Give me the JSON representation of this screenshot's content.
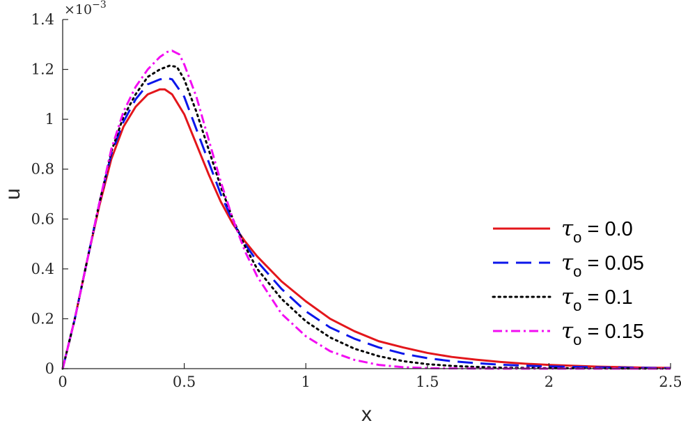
{
  "chart_data": {
    "type": "line",
    "title": "",
    "xlabel": "x",
    "ylabel": "u",
    "xlim": [
      0,
      2.5
    ],
    "ylim": [
      0,
      1.4
    ],
    "y_exponent_label": "×10",
    "y_exponent_power": "−3",
    "xticks": [
      0,
      0.5,
      1,
      1.5,
      2,
      2.5
    ],
    "xtick_labels": [
      "0",
      "0.5",
      "1",
      "1.5",
      "2",
      "2.5"
    ],
    "yticks": [
      0,
      0.2,
      0.4,
      0.6,
      0.8,
      1.0,
      1.2,
      1.4
    ],
    "ytick_labels": [
      "0",
      "0.2",
      "0.4",
      "0.6",
      "0.8",
      "1",
      "1.2",
      "1.4"
    ],
    "grid": false,
    "legend_position": "right",
    "series": [
      {
        "name": "τo = 0.0",
        "legend_symbol": "τ",
        "legend_subscript": "o",
        "legend_value": " = 0.0",
        "color": "#e3161b",
        "style": "solid",
        "x": [
          0,
          0.05,
          0.1,
          0.15,
          0.2,
          0.25,
          0.3,
          0.35,
          0.4,
          0.42,
          0.45,
          0.5,
          0.55,
          0.6,
          0.65,
          0.7,
          0.75,
          0.8,
          0.9,
          1.0,
          1.1,
          1.2,
          1.3,
          1.4,
          1.5,
          1.6,
          1.7,
          1.8,
          1.9,
          2.0,
          2.2,
          2.4,
          2.5
        ],
        "y": [
          0,
          0.2,
          0.43,
          0.65,
          0.84,
          0.97,
          1.05,
          1.1,
          1.12,
          1.12,
          1.1,
          1.02,
          0.9,
          0.78,
          0.67,
          0.58,
          0.51,
          0.45,
          0.35,
          0.27,
          0.2,
          0.15,
          0.11,
          0.085,
          0.063,
          0.047,
          0.036,
          0.027,
          0.02,
          0.015,
          0.008,
          0.004,
          0.003
        ]
      },
      {
        "name": "τo = 0.05",
        "legend_symbol": "τ",
        "legend_subscript": "o",
        "legend_value": " = 0.05",
        "color": "#0b16ea",
        "style": "dashed",
        "x": [
          0,
          0.05,
          0.1,
          0.15,
          0.2,
          0.25,
          0.3,
          0.35,
          0.4,
          0.43,
          0.45,
          0.5,
          0.55,
          0.6,
          0.65,
          0.7,
          0.75,
          0.8,
          0.9,
          1.0,
          1.1,
          1.2,
          1.3,
          1.4,
          1.5,
          1.6,
          1.7,
          1.8,
          1.9,
          2.0,
          2.2,
          2.4,
          2.5
        ],
        "y": [
          0,
          0.2,
          0.43,
          0.66,
          0.86,
          0.99,
          1.08,
          1.14,
          1.16,
          1.165,
          1.16,
          1.09,
          0.96,
          0.83,
          0.7,
          0.59,
          0.5,
          0.43,
          0.32,
          0.23,
          0.165,
          0.12,
          0.085,
          0.06,
          0.042,
          0.03,
          0.022,
          0.016,
          0.012,
          0.009,
          0.005,
          0.003,
          0.002
        ]
      },
      {
        "name": "τo = 0.1",
        "legend_symbol": "τ",
        "legend_subscript": "o",
        "legend_value": " = 0.1",
        "color": "#000000",
        "style": "dotted",
        "x": [
          0,
          0.05,
          0.1,
          0.15,
          0.2,
          0.25,
          0.3,
          0.35,
          0.4,
          0.44,
          0.47,
          0.5,
          0.55,
          0.6,
          0.65,
          0.7,
          0.75,
          0.8,
          0.9,
          1.0,
          1.1,
          1.2,
          1.3,
          1.4,
          1.5,
          1.6,
          1.7,
          1.8,
          2.0,
          2.2,
          2.5
        ],
        "y": [
          0,
          0.2,
          0.43,
          0.66,
          0.87,
          1.01,
          1.1,
          1.17,
          1.2,
          1.215,
          1.21,
          1.16,
          1.03,
          0.88,
          0.73,
          0.6,
          0.49,
          0.4,
          0.28,
          0.19,
          0.125,
          0.08,
          0.05,
          0.03,
          0.018,
          0.011,
          0.007,
          0.004,
          0.002,
          0.001,
          0.0
        ]
      },
      {
        "name": "τo = 0.15",
        "legend_symbol": "τ",
        "legend_subscript": "o",
        "legend_value": " = 0.15",
        "color": "#f20df2",
        "style": "dashdot",
        "x": [
          0,
          0.05,
          0.1,
          0.15,
          0.2,
          0.25,
          0.3,
          0.35,
          0.4,
          0.43,
          0.45,
          0.48,
          0.5,
          0.55,
          0.6,
          0.65,
          0.7,
          0.75,
          0.8,
          0.9,
          1.0,
          1.1,
          1.2,
          1.3,
          1.4,
          1.5,
          1.6,
          1.8,
          2.0,
          2.5
        ],
        "y": [
          0,
          0.2,
          0.43,
          0.66,
          0.88,
          1.03,
          1.13,
          1.2,
          1.25,
          1.27,
          1.275,
          1.26,
          1.22,
          1.09,
          0.92,
          0.75,
          0.6,
          0.47,
          0.37,
          0.22,
          0.13,
          0.07,
          0.035,
          0.015,
          0.006,
          0.002,
          0.001,
          0.0,
          0.0,
          0.0
        ]
      }
    ]
  }
}
